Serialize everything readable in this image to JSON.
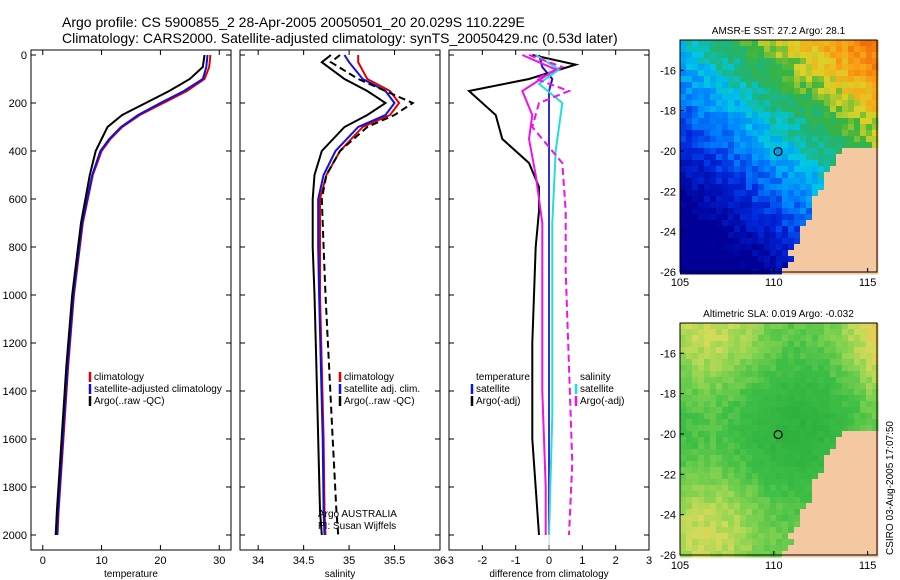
{
  "header": {
    "line1": "Argo profile: CS 5900855_2 28-Apr-2005 20050501_20 20.029S 110.229E",
    "line2": "Climatology: CARS2000. Satellite-adjusted climatology: synTS_20050429.nc (0.53d later)"
  },
  "credit": {
    "line1": "Argo AUSTRALIA",
    "line2": "PI: Susan Wijffels"
  },
  "footer": "CSIRO 03-Aug-2005 17:07:50",
  "colors": {
    "climatology": "#e00000",
    "satellite": "#1010e0",
    "argo": "#000000",
    "magenta": "#ee11ee",
    "cyan": "#22dddd"
  },
  "chart_data": [
    {
      "type": "line",
      "xlabel": "temperature",
      "ylabel": "",
      "xlim": [
        -2,
        32
      ],
      "ylim": [
        2050,
        0
      ],
      "xticks": [
        0,
        10,
        20,
        30
      ],
      "yticks": [
        0,
        200,
        400,
        600,
        800,
        1000,
        1200,
        1400,
        1600,
        1800,
        2000
      ],
      "legend": [
        "climatology",
        "satellite-adjusted climatology",
        "Argo(..raw -QC)"
      ],
      "series": [
        {
          "name": "climatology",
          "color": "#e00000",
          "width": 2,
          "x": [
            28.5,
            28.3,
            27.5,
            24.5,
            20.5,
            16.5,
            13.5,
            11.5,
            10.0,
            8.5,
            6.8,
            5.3,
            4.3,
            3.5,
            2.7,
            2.5
          ],
          "y": [
            0,
            50,
            100,
            150,
            200,
            250,
            300,
            350,
            400,
            500,
            700,
            1000,
            1300,
            1600,
            1900,
            2000
          ]
        },
        {
          "name": "satellite-adjusted climatology",
          "color": "#1010e0",
          "width": 2,
          "x": [
            28.0,
            27.8,
            27.2,
            24.0,
            20.0,
            16.2,
            13.3,
            11.3,
            9.8,
            8.4,
            6.7,
            5.2,
            4.2,
            3.4,
            2.6,
            2.4
          ],
          "y": [
            0,
            50,
            100,
            150,
            200,
            250,
            300,
            350,
            400,
            500,
            700,
            1000,
            1300,
            1600,
            1900,
            2000
          ]
        },
        {
          "name": "Argo(..raw -QC)",
          "color": "#000000",
          "width": 2,
          "x": [
            27.5,
            27.2,
            25.0,
            21.5,
            17.5,
            13.5,
            11.0,
            10.0,
            9.0,
            8.0,
            6.5,
            5.0,
            4.0,
            3.2,
            2.4,
            2.2
          ],
          "y": [
            0,
            50,
            100,
            150,
            200,
            250,
            300,
            350,
            400,
            500,
            700,
            1000,
            1300,
            1600,
            1900,
            2000
          ]
        }
      ]
    },
    {
      "type": "line",
      "xlabel": "salinity",
      "xlim": [
        33.8,
        36
      ],
      "ylim": [
        2050,
        0
      ],
      "xticks": [
        34,
        34.5,
        35,
        35.5,
        36
      ],
      "legend": [
        "climatology",
        "satellite adj. clim.",
        "Argo(..raw -QC)"
      ],
      "series": [
        {
          "name": "climatology",
          "color": "#e00000",
          "width": 2,
          "x": [
            35.1,
            35.1,
            35.2,
            35.45,
            35.55,
            35.45,
            35.15,
            34.9,
            34.75,
            34.68,
            34.68,
            34.68,
            34.7,
            34.72,
            34.73,
            34.74
          ],
          "y": [
            0,
            30,
            100,
            150,
            200,
            250,
            300,
            400,
            500,
            600,
            800,
            1000,
            1300,
            1600,
            1900,
            2000
          ]
        },
        {
          "name": "satellite adj. clim.",
          "color": "#1010e0",
          "width": 2,
          "x": [
            34.95,
            35.0,
            35.15,
            35.4,
            35.5,
            35.4,
            35.1,
            34.85,
            34.72,
            34.66,
            34.66,
            34.67,
            34.69,
            34.71,
            34.72,
            34.73
          ],
          "y": [
            0,
            30,
            100,
            150,
            200,
            250,
            300,
            400,
            500,
            600,
            800,
            1000,
            1300,
            1600,
            1900,
            2000
          ]
        },
        {
          "name": "Argo(..raw -QC)",
          "color": "#000000",
          "width": 2,
          "x": [
            34.8,
            34.7,
            34.95,
            35.2,
            35.4,
            35.2,
            34.95,
            34.7,
            34.62,
            34.6,
            34.6,
            34.62,
            34.64,
            34.66,
            34.68,
            34.7
          ],
          "y": [
            0,
            30,
            100,
            150,
            200,
            250,
            300,
            400,
            500,
            600,
            800,
            1000,
            1300,
            1600,
            1900,
            2000
          ]
        },
        {
          "name": "Argo(..raw -QC) dashed",
          "color": "#000000",
          "width": 2,
          "dash": true,
          "x": [
            34.9,
            34.8,
            35.1,
            35.4,
            35.7,
            35.5,
            35.2,
            34.9,
            34.75,
            34.7,
            34.72,
            34.74,
            34.78,
            34.82,
            34.86,
            34.88
          ],
          "y": [
            0,
            30,
            100,
            150,
            200,
            250,
            300,
            400,
            500,
            600,
            800,
            1000,
            1300,
            1600,
            1900,
            2000
          ]
        }
      ]
    },
    {
      "type": "line",
      "xlabel": "difference from climatology",
      "xlim": [
        -3,
        3
      ],
      "ylim": [
        2050,
        0
      ],
      "xticks": [
        -3,
        -2,
        -1,
        0,
        1,
        2,
        3
      ],
      "legend_left": [
        "temperature",
        "satellite",
        "Argo(-adj)"
      ],
      "legend_right": [
        "salinity",
        "satellite",
        "Argo(-adj)"
      ],
      "series": [
        {
          "name": "temperature satellite",
          "color": "#1010e0",
          "width": 2,
          "x": [
            -0.3,
            -0.2,
            0.1,
            0.0,
            0.0,
            0.0,
            0.0,
            0.0,
            0.0,
            0.0,
            0.0
          ],
          "y": [
            0,
            50,
            100,
            150,
            200,
            300,
            500,
            800,
            1200,
            1600,
            2000
          ]
        },
        {
          "name": "temperature Argo(-adj)",
          "color": "#000000",
          "width": 2,
          "x": [
            -0.5,
            0.8,
            -0.6,
            -2.4,
            -1.6,
            -1.4,
            -0.6,
            -0.3,
            -0.3,
            -0.4,
            -0.5,
            -0.5,
            -0.3
          ],
          "y": [
            0,
            40,
            100,
            150,
            250,
            350,
            450,
            550,
            650,
            800,
            1200,
            1600,
            2000
          ]
        },
        {
          "name": "salinity satellite",
          "color": "#22dddd",
          "width": 2,
          "x": [
            -0.4,
            0.3,
            -0.3,
            0.4,
            0.2,
            0.1,
            0.1,
            0.1,
            0.0
          ],
          "y": [
            0,
            60,
            120,
            200,
            400,
            700,
            1000,
            1500,
            2000
          ]
        },
        {
          "name": "salinity Argo(-adj)",
          "color": "#ee11ee",
          "width": 2,
          "x": [
            -0.8,
            0.2,
            -0.8,
            -0.5,
            -0.6,
            -0.4,
            -0.2,
            -0.2,
            -0.2,
            -0.1,
            -0.1
          ],
          "y": [
            0,
            60,
            150,
            250,
            350,
            500,
            700,
            1000,
            1400,
            1800,
            2000
          ]
        },
        {
          "name": "salinity Argo(-adj) dashed",
          "color": "#ee11ee",
          "width": 2,
          "dash": true,
          "x": [
            -0.6,
            0.4,
            -0.4,
            0.6,
            -0.3,
            -0.5,
            0.4,
            0.5,
            0.5,
            0.6,
            0.7,
            0.6
          ],
          "y": [
            0,
            50,
            100,
            150,
            200,
            300,
            450,
            650,
            900,
            1300,
            1700,
            2000
          ]
        }
      ]
    },
    {
      "type": "heatmap",
      "title": "AMSR-E SST: 27.2 Argo: 28.1",
      "xlim": [
        105,
        115.5
      ],
      "ylim": [
        -26,
        -14.5
      ],
      "xticks": [
        105,
        110,
        115
      ],
      "yticks": [
        -16,
        -18,
        -20,
        -22,
        -24,
        -26
      ],
      "marker": {
        "lon": 110.229,
        "lat": -20.029
      },
      "palette": "sst"
    },
    {
      "type": "heatmap",
      "title": "Altimetric SLA: 0.019 Argo: -0.032",
      "xlim": [
        105,
        115.5
      ],
      "ylim": [
        -26,
        -14.5
      ],
      "xticks": [
        105,
        110,
        115
      ],
      "yticks": [
        -16,
        -18,
        -20,
        -22,
        -24,
        -26
      ],
      "marker": {
        "lon": 110.229,
        "lat": -20.029
      },
      "palette": "sla"
    }
  ]
}
